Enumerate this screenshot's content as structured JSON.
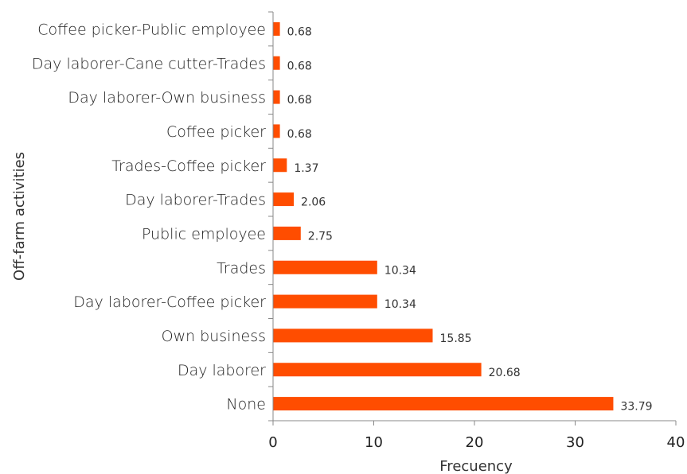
{
  "chart_data": {
    "type": "bar",
    "orientation": "horizontal",
    "categories": [
      "None",
      "Day laborer",
      "Own business",
      "Day laborer-Coffee picker",
      "Trades",
      "Public employee",
      "Day laborer-Trades",
      "Trades-Coffee picker",
      "Coffee picker",
      "Day laborer-Own business",
      "Day laborer-Cane cutter-Trades",
      "Coffee picker-Public employee"
    ],
    "values": [
      33.79,
      20.68,
      15.85,
      10.34,
      10.34,
      2.75,
      2.06,
      1.37,
      0.68,
      0.68,
      0.68,
      0.68
    ],
    "value_labels": [
      "33.79",
      "20.68",
      "15.85",
      "10.34",
      "10.34",
      "2.75",
      "2.06",
      "1.37",
      "0.68",
      "0.68",
      "0.68",
      "0.68"
    ],
    "title": "",
    "xlabel": "Frecuency",
    "ylabel": "Off-farm activities",
    "xlim": [
      0,
      40
    ],
    "xticks": [
      0,
      10,
      20,
      30,
      40
    ],
    "grid": false,
    "legend": "none",
    "bar_color": "#FF4D00",
    "axis_color": "#888888"
  }
}
